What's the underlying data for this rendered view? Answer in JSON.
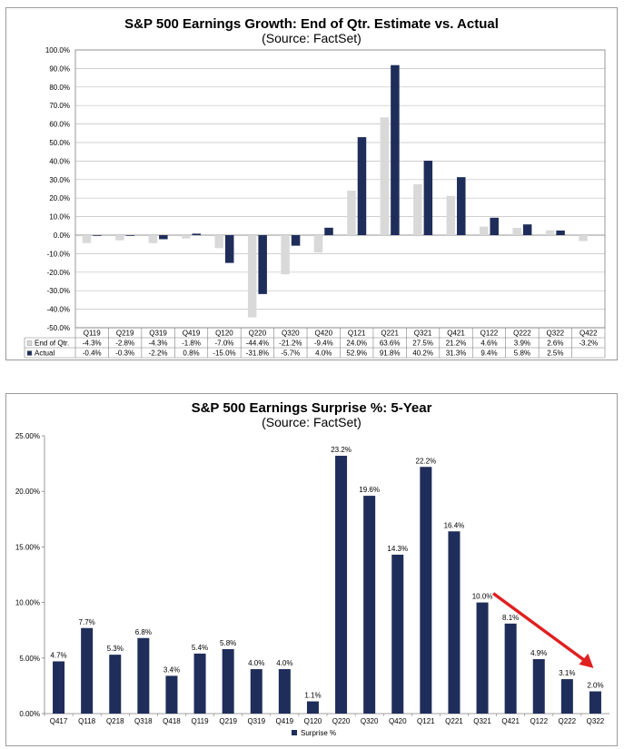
{
  "chart_data": [
    {
      "type": "bar",
      "title": "S&P 500 Earnings Growth: End of Qtr. Estimate vs. Actual",
      "subtitle": "(Source: FactSet)",
      "categories": [
        "Q119",
        "Q219",
        "Q319",
        "Q419",
        "Q120",
        "Q220",
        "Q320",
        "Q420",
        "Q121",
        "Q221",
        "Q321",
        "Q421",
        "Q122",
        "Q222",
        "Q322",
        "Q422"
      ],
      "series": [
        {
          "name": "End of Qtr.",
          "color": "#d9d9d9",
          "values": [
            -4.3,
            -2.8,
            -4.3,
            -1.8,
            -7.0,
            -44.4,
            -21.2,
            -9.4,
            24.0,
            63.6,
            27.5,
            21.2,
            4.6,
            3.9,
            2.6,
            -3.2
          ],
          "labels": [
            "-4.3%",
            "-2.8%",
            "-4.3%",
            "-1.8%",
            "-7.0%",
            "-44.4%",
            "-21.2%",
            "-9.4%",
            "24.0%",
            "63.6%",
            "27.5%",
            "21.2%",
            "4.6%",
            "3.9%",
            "2.6%",
            "-3.2%"
          ]
        },
        {
          "name": "Actual",
          "color": "#1f2d5a",
          "values": [
            -0.4,
            -0.3,
            -2.2,
            0.8,
            -15.0,
            -31.8,
            -5.7,
            4.0,
            52.9,
            91.8,
            40.2,
            31.3,
            9.4,
            5.8,
            2.5,
            null
          ],
          "labels": [
            "-0.4%",
            "-0.3%",
            "-2.2%",
            "0.8%",
            "-15.0%",
            "-31.8%",
            "-5.7%",
            "4.0%",
            "52.9%",
            "91.8%",
            "40.2%",
            "31.3%",
            "9.4%",
            "5.8%",
            "2.5%",
            ""
          ]
        }
      ],
      "ylim": [
        -50,
        100
      ],
      "yticks": [
        "100.0%",
        "90.0%",
        "80.0%",
        "70.0%",
        "60.0%",
        "50.0%",
        "40.0%",
        "30.0%",
        "20.0%",
        "10.0%",
        "0.0%",
        "-10.0%",
        "-20.0%",
        "-30.0%",
        "-40.0%",
        "-50.0%"
      ],
      "grid": true,
      "legend": "data table"
    },
    {
      "type": "bar",
      "title": "S&P 500 Earnings Surprise %: 5-Year",
      "subtitle": "(Source: FactSet)",
      "categories": [
        "Q417",
        "Q118",
        "Q218",
        "Q318",
        "Q418",
        "Q119",
        "Q219",
        "Q319",
        "Q419",
        "Q120",
        "Q220",
        "Q320",
        "Q420",
        "Q121",
        "Q221",
        "Q321",
        "Q421",
        "Q122",
        "Q222",
        "Q322"
      ],
      "series": [
        {
          "name": "Surprise %",
          "color": "#1f2d5a",
          "values": [
            4.7,
            7.7,
            5.3,
            6.8,
            3.4,
            5.4,
            5.8,
            4.0,
            4.0,
            1.1,
            23.2,
            19.6,
            14.3,
            22.2,
            16.4,
            10.0,
            8.1,
            4.9,
            3.1,
            2.0
          ],
          "labels": [
            "4.7%",
            "7.7%",
            "5.3%",
            "6.8%",
            "3.4%",
            "5.4%",
            "5.8%",
            "4.0%",
            "4.0%",
            "1.1%",
            "23.2%",
            "19.6%",
            "14.3%",
            "22.2%",
            "16.4%",
            "10.0%",
            "8.1%",
            "4.9%",
            "3.1%",
            "2.0%"
          ]
        }
      ],
      "ylim": [
        0,
        25
      ],
      "yticks": [
        "25.00%",
        "20.00%",
        "15.00%",
        "10.00%",
        "5.00%",
        "0.00%"
      ],
      "grid": false,
      "legend": "bottom",
      "annotation": {
        "type": "arrow",
        "color": "#e02020",
        "from_category": "Q321",
        "to_category": "Q322"
      }
    }
  ]
}
